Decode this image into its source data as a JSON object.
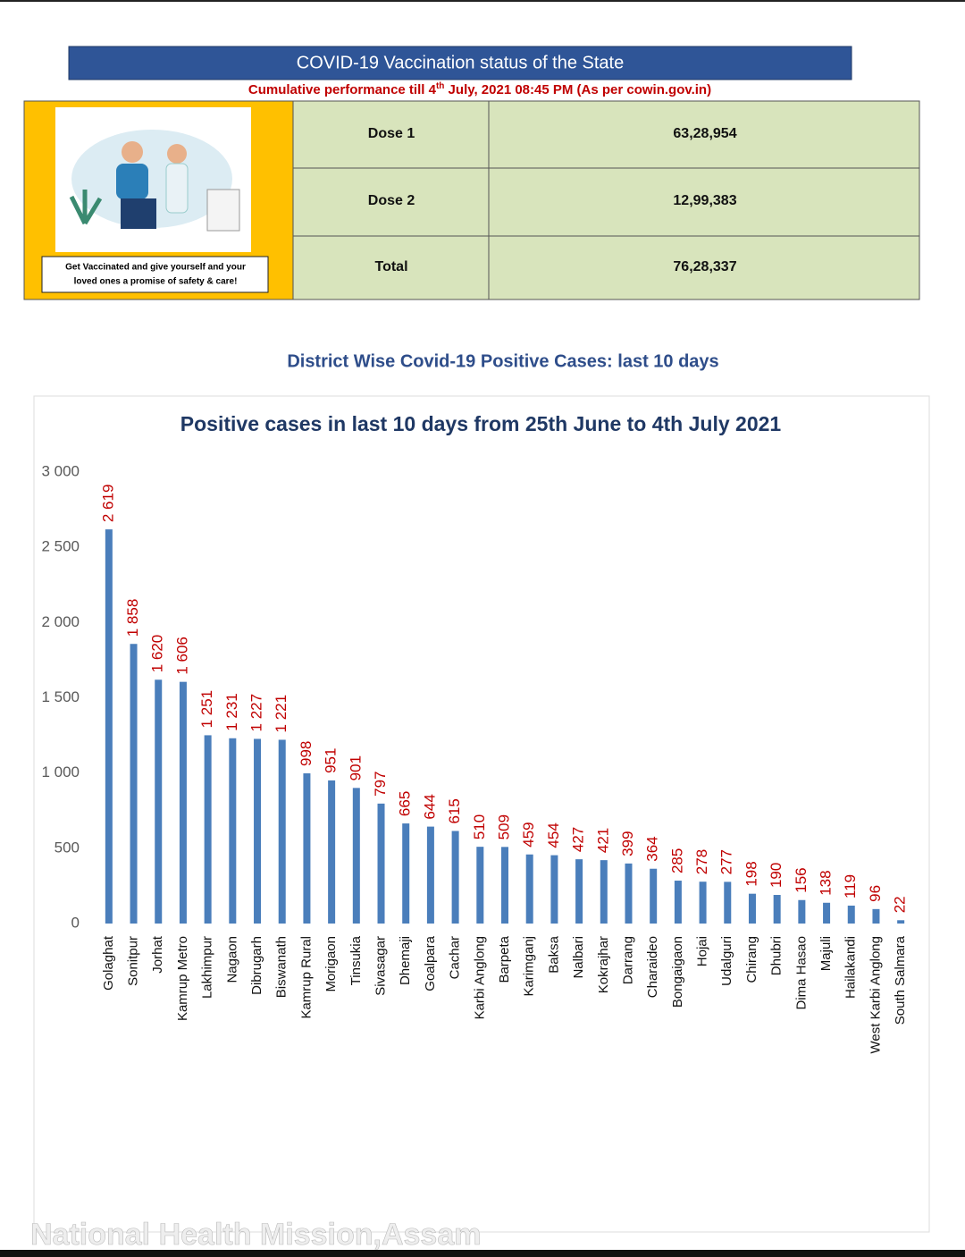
{
  "header": {
    "title": "COVID-19 Vaccination status of the State",
    "subtitle": [
      "Cumulative performance till 4",
      "th",
      " July, 2021 08:45 PM (As per cowin.gov.in)"
    ]
  },
  "caption": [
    "Get Vaccinated and give yourself and your",
    "loved ones a promise of safety & care!"
  ],
  "table": {
    "rows": [
      [
        "Dose 1",
        "63,28,954"
      ],
      [
        "Dose 2",
        "12,99,383"
      ],
      [
        "Total",
        "76,28,337"
      ]
    ]
  },
  "section_title": "District Wise Covid-19 Positive Cases: last 10 days",
  "footer": "National Health Mission,Assam",
  "chart_data": {
    "type": "bar",
    "title": "Positive cases in last 10 days from 25th June to 4th July 2021",
    "categories": [
      "Golaghat",
      "Sonitpur",
      "Jorhat",
      "Kamrup Metro",
      "Lakhimpur",
      "Nagaon",
      "Dibrugarh",
      "Biswanath",
      "Kamrup Rural",
      "Morigaon",
      "Tinsukia",
      "Sivasagar",
      "Dhemaji",
      "Goalpara",
      "Cachar",
      "Karbi Anglong",
      "Barpeta",
      "Karimganj",
      "Baksa",
      "Nalbari",
      "Kokrajhar",
      "Darrang",
      "Charaideo",
      "Bongaigaon",
      "Hojai",
      "Udalguri",
      "Chirang",
      "Dhubri",
      "Dima Hasao",
      "Majuli",
      "Hailakandi",
      "West Karbi Anglong",
      "South Salmara"
    ],
    "values": [
      2619,
      1858,
      1620,
      1606,
      1251,
      1231,
      1227,
      1221,
      998,
      951,
      901,
      797,
      665,
      644,
      615,
      510,
      509,
      459,
      454,
      427,
      421,
      399,
      364,
      285,
      278,
      277,
      198,
      190,
      156,
      138,
      119,
      96,
      22
    ],
    "value_labels": [
      "2 619",
      "1 858",
      "1 620",
      "1 606",
      "1 251",
      "1 231",
      "1 227",
      "1 221",
      "998",
      "951",
      "901",
      "797",
      "665",
      "644",
      "615",
      "510",
      "509",
      "459",
      "454",
      "427",
      "421",
      "399",
      "364",
      "285",
      "278",
      "277",
      "198",
      "190",
      "156",
      "138",
      "119",
      "96",
      "22"
    ],
    "color": "#4a7ebb",
    "ylim": [
      0,
      3000
    ],
    "yticks": [
      0,
      500,
      {
        "value": 1000,
        "label": "1 000"
      },
      {
        "value": 1500,
        "label": "1 500"
      },
      {
        "value": 2000,
        "label": "2 000"
      },
      {
        "value": 2500,
        "label": "2 500"
      },
      {
        "value": 3000,
        "label": "3 000"
      }
    ],
    "grid": false
  }
}
